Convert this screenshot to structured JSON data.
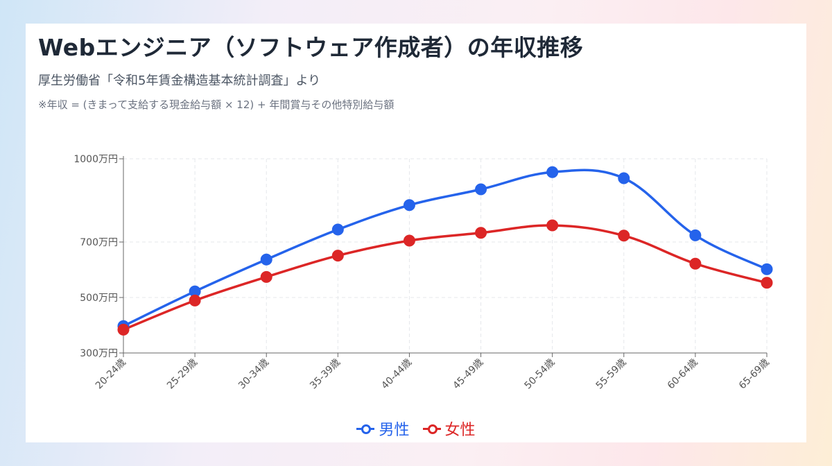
{
  "title": "Webエンジニア（ソフトウェア作成者）の年収推移",
  "subtitle": "厚生労働省「令和5年賃金構造基本統計調査」より",
  "note": "※年収 = (きまって支給する現金給与額 × 12) + 年間賞与その他特別給与額",
  "chart_data": {
    "type": "line",
    "categories": [
      "20-24歳",
      "25-29歳",
      "30-34歳",
      "35-39歳",
      "40-44歳",
      "45-49歳",
      "50-54歳",
      "55-59歳",
      "60-64歳",
      "65-69歳"
    ],
    "series": [
      {
        "name": "男性",
        "color": "#2563eb",
        "values": [
          397,
          522,
          637,
          745,
          833,
          890,
          952,
          930,
          724,
          602
        ]
      },
      {
        "name": "女性",
        "color": "#dc2626",
        "values": [
          384,
          489,
          574,
          651,
          705,
          733,
          760,
          723,
          622,
          553
        ]
      }
    ],
    "yticks": [
      {
        "value": 300,
        "label": "300万円"
      },
      {
        "value": 500,
        "label": "500万円"
      },
      {
        "value": 700,
        "label": "700万円"
      },
      {
        "value": 1000,
        "label": "1000万円"
      }
    ],
    "ylim": [
      300,
      1000
    ],
    "grid": true,
    "legend_position": "bottom"
  }
}
